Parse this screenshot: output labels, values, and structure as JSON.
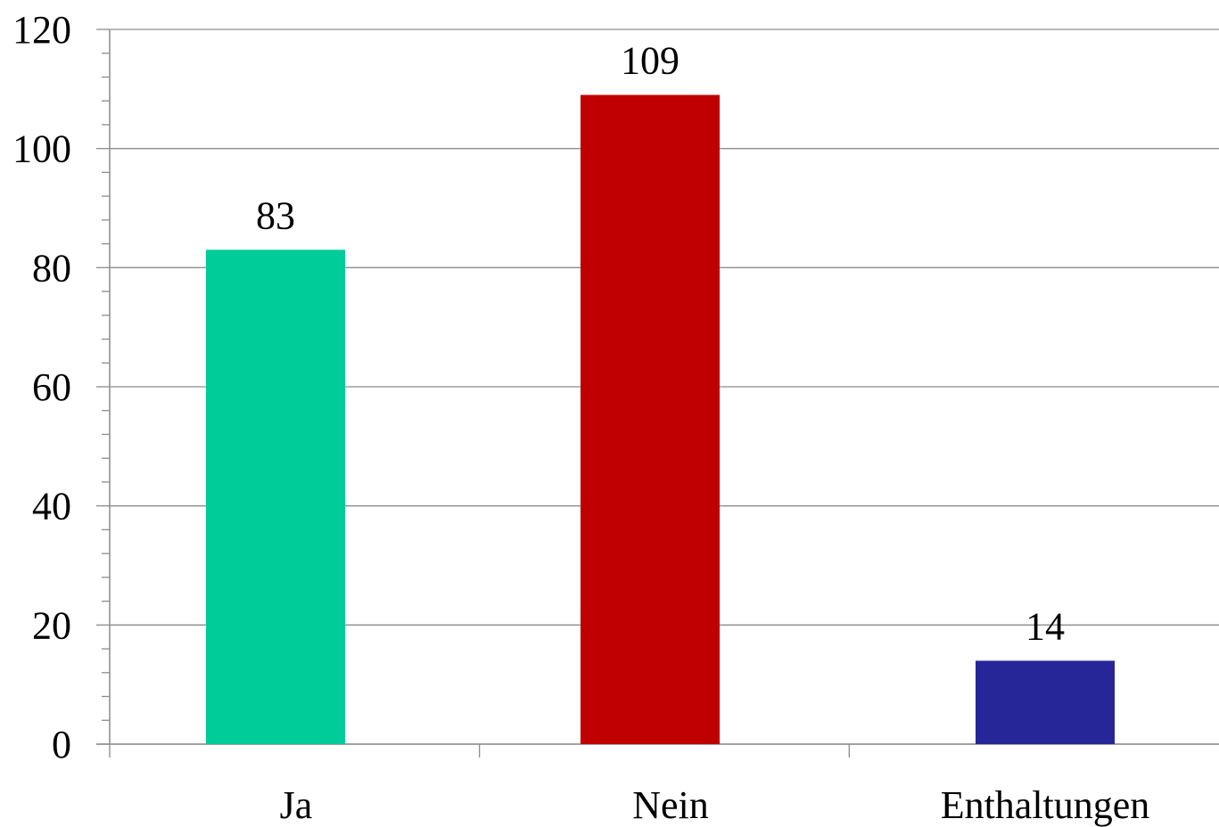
{
  "chart_data": {
    "type": "bar",
    "categories": [
      "Ja",
      "Nein",
      "Enthaltungen"
    ],
    "values": [
      83,
      109,
      14
    ],
    "colors": [
      "#00CC99",
      "#C00000",
      "#262699"
    ],
    "title": "",
    "xlabel": "",
    "ylabel": "",
    "ylim": [
      0,
      120
    ],
    "yticks": [
      0,
      20,
      40,
      60,
      80,
      100,
      120
    ],
    "ytick_labels": [
      "0",
      "20",
      "40",
      "60",
      "80",
      "100",
      "120"
    ],
    "data_labels": [
      "83",
      "109",
      "14"
    ],
    "grid": true,
    "legend": "none"
  }
}
